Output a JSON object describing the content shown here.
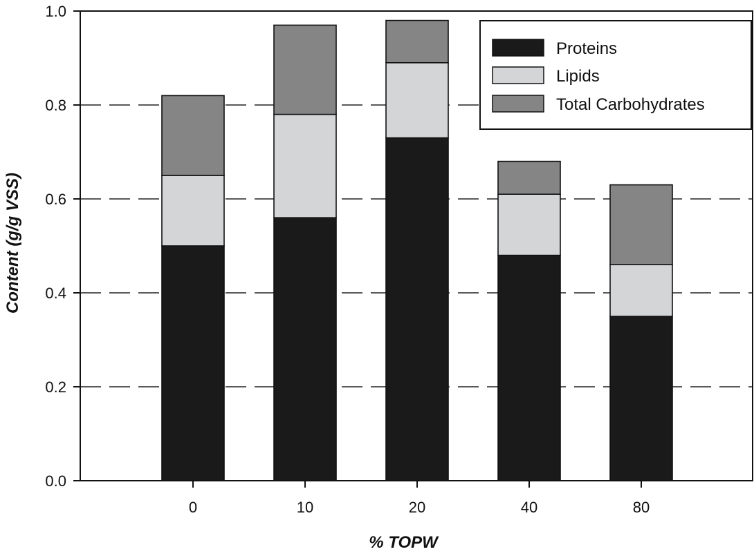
{
  "chart_data": {
    "type": "bar",
    "stacked": true,
    "categories": [
      "0",
      "10",
      "20",
      "40",
      "80"
    ],
    "series": [
      {
        "name": "Proteins",
        "values": [
          0.5,
          0.56,
          0.73,
          0.48,
          0.35
        ],
        "color": "#1a1a1a"
      },
      {
        "name": "Lipids",
        "values": [
          0.15,
          0.22,
          0.16,
          0.13,
          0.11
        ],
        "color": "#d4d5d7"
      },
      {
        "name": "Total Carbohydrates",
        "values": [
          0.17,
          0.19,
          0.09,
          0.07,
          0.17
        ],
        "color": "#858585"
      }
    ],
    "title": "",
    "xlabel": "% TOPW",
    "ylabel": "Content (g/g VSS)",
    "ylim": [
      0,
      1.0
    ],
    "yticks": [
      "0.0",
      "0.2",
      "0.4",
      "0.6",
      "0.8",
      "1.0"
    ],
    "grid": "dashed horizontal",
    "legend_position": "top-right"
  }
}
